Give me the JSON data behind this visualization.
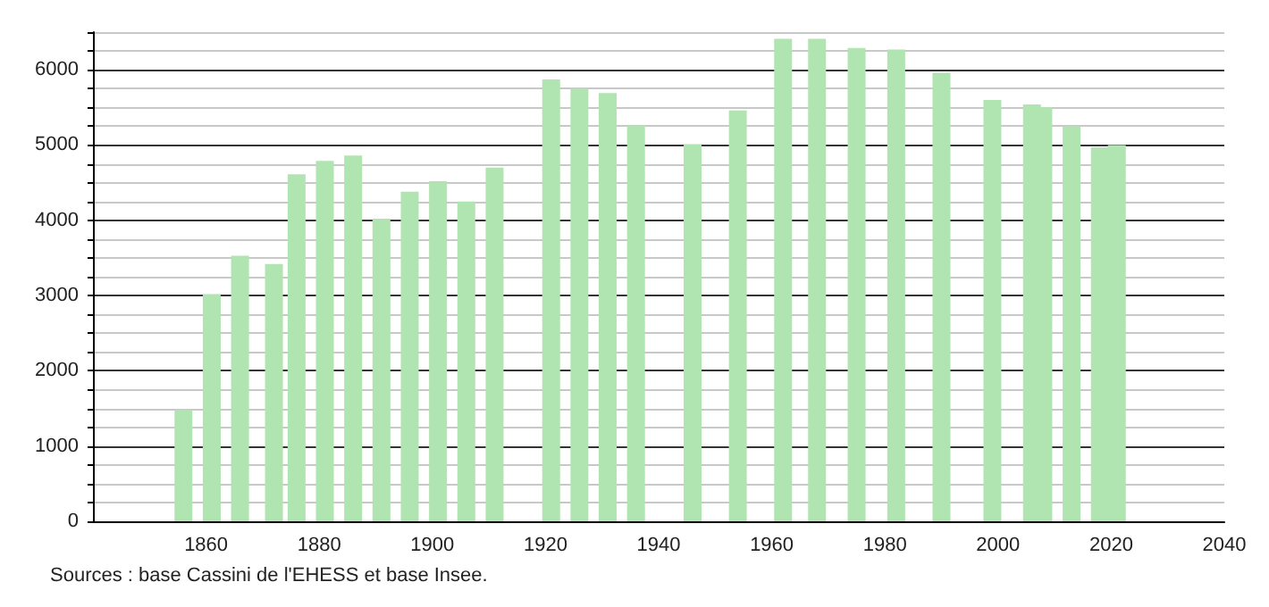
{
  "chart_data": {
    "type": "bar",
    "color": "#b0e4b0",
    "x": [
      1856,
      1861,
      1866,
      1872,
      1876,
      1881,
      1886,
      1891,
      1896,
      1901,
      1906,
      1911,
      1921,
      1926,
      1931,
      1936,
      1946,
      1954,
      1962,
      1968,
      1975,
      1982,
      1990,
      1999,
      2006,
      2008,
      2013,
      2018,
      2021
    ],
    "values": [
      1480,
      3020,
      3530,
      3420,
      4610,
      4790,
      4860,
      4020,
      4380,
      4520,
      4250,
      4700,
      5870,
      5750,
      5690,
      5260,
      5010,
      5460,
      6410,
      6410,
      6290,
      6270,
      5960,
      5600,
      5540,
      5500,
      5250,
      4970,
      5000
    ],
    "xlim": [
      1840,
      2040
    ],
    "xticks": [
      1860,
      1880,
      1900,
      1920,
      1940,
      1960,
      1980,
      2000,
      2020,
      2040
    ],
    "ylim": [
      0,
      6500
    ],
    "yticks": [
      0,
      {
        "value": 250,
        "label": null
      },
      {
        "value": 500,
        "label": null
      },
      {
        "value": 750,
        "label": null
      },
      1000,
      {
        "value": 1250,
        "label": null
      },
      {
        "value": 1500,
        "label": null
      },
      {
        "value": 1750,
        "label": null
      },
      2000,
      {
        "value": 2250,
        "label": null
      },
      {
        "value": 2500,
        "label": null
      },
      {
        "value": 2750,
        "label": null
      },
      3000,
      {
        "value": 3250,
        "label": null
      },
      {
        "value": 3500,
        "label": null
      },
      {
        "value": 3750,
        "label": null
      },
      4000,
      {
        "value": 4250,
        "label": null
      },
      {
        "value": 4500,
        "label": null
      },
      {
        "value": 4750,
        "label": null
      },
      5000,
      {
        "value": 5250,
        "label": null
      },
      {
        "value": 5500,
        "label": null
      },
      {
        "value": 5750,
        "label": null
      },
      6000,
      {
        "value": 6250,
        "label": null
      },
      {
        "value": 6500,
        "label": null
      }
    ],
    "grid": "y",
    "annotations": [
      "Sources : base Cassini de l'EHESS et base Insee."
    ]
  }
}
